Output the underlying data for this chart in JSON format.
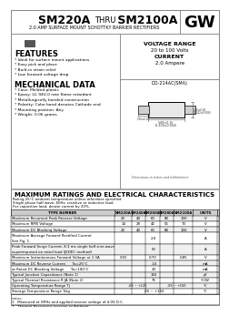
{
  "title_bold1": "SM220A",
  "title_thru": "THRU",
  "title_bold2": "SM2100A",
  "subtitle": "2.0 AMP SURFACE MOUNT SCHOTTKY BARRIER RECTIFIERS",
  "voltage_range_label": "VOLTAGE RANGE",
  "voltage_range_value": "20 to 100 Volts",
  "current_label": "CURRENT",
  "current_value": "2.0 Ampere",
  "features_title": "FEATURES",
  "features": [
    "* Ideal for surface mount applications",
    "* Easy pick and place",
    "* Built-in strain relief",
    "* Low forward voltage drop"
  ],
  "mechanical_title": "MECHANICAL DATA",
  "mechanical": [
    "* Case: Molded plastic",
    "* Epoxy: UL 94V-0 rate flame retardant",
    "* Metallurgically bonded construction",
    "* Polarity: Color band denotes Cathode end",
    "* Mounting position: Any",
    "* Weight: 0.06 grams"
  ],
  "package_label": "DO-214AC(SMA)",
  "table_title": "MAXIMUM RATINGS AND ELECTRICAL CHARACTERISTICS",
  "table_note1": "Rating 25°C ambient temperature unless otherwise specified",
  "table_note2": "Single phase half wave, 60Hz, resistive or inductive load.",
  "table_note3": "For capacitive load, derate current by 20%.",
  "col_headers": [
    "TYPE NUMBER",
    "SM220A",
    "SM240A",
    "SM260A",
    "SM280A",
    "SM2100A",
    "UNITS"
  ],
  "row_data": [
    {
      "label": "Maximum Recurrent Peak Reverse Voltage",
      "v": [
        "20",
        "40",
        "60",
        "80",
        "100"
      ],
      "u": "V",
      "span": false
    },
    {
      "label": "Maximum RMS Voltage",
      "v": [
        "14",
        "28",
        "42",
        "56",
        "70"
      ],
      "u": "V",
      "span": false
    },
    {
      "label": "Maximum DC Blocking Voltage",
      "v": [
        "20",
        "40",
        "60",
        "80",
        "100"
      ],
      "u": "V",
      "span": false
    },
    {
      "label": "Maximum Average Forward Rectified Current",
      "v": [
        "",
        "",
        "2.0",
        "",
        ""
      ],
      "u": "A",
      "span": true,
      "extra": "See Fig. 1"
    },
    {
      "label": "Peak Forward Surge Current, 8.3 ms single half sine-wave",
      "v": [
        "",
        "",
        "50",
        "",
        ""
      ],
      "u": "A",
      "span": true,
      "extra": "superimposed on rated load (JEDEC method)"
    },
    {
      "label": "Maximum Instantaneous Forward Voltage at 2.0A",
      "v": [
        "0.55",
        "",
        "0.70",
        "",
        "0.85"
      ],
      "u": "V",
      "span": false
    },
    {
      "label": "Maximum DC Reverse Current      Ta=25°C",
      "v": [
        "",
        "",
        "1.0",
        "",
        ""
      ],
      "u": "mA",
      "span": true
    },
    {
      "label": "at Rated DC Blocking Voltage      Ta=100°C",
      "v": [
        "",
        "",
        "20",
        "",
        ""
      ],
      "u": "mA",
      "span": true
    },
    {
      "label": "Typical Junction Capacitance (Note 1)",
      "v": [
        "",
        "",
        "150",
        "",
        ""
      ],
      "u": "pF",
      "span": true
    },
    {
      "label": "Typical Thermal Resistance R JA (Note 2)",
      "v": [
        "",
        "",
        "75",
        "",
        ""
      ],
      "u": "°C/W",
      "span": true
    },
    {
      "label": "Operating Temperature Range Tj",
      "v": [
        "-65 ~ +125",
        "",
        "",
        "-65 ~ +150",
        ""
      ],
      "u": "°C",
      "span": false,
      "split": true
    },
    {
      "label": "Storage Temperature Range Tstg",
      "v": [
        "",
        "",
        "-65 ~ +150",
        "",
        ""
      ],
      "u": "°C",
      "span": true
    }
  ],
  "notes": [
    "1.  Measured at 1MHz and applied reverse voltage of 4.0V D.C.",
    "2.  Thermal Resistance Junction to Ambient."
  ],
  "bg_color": "#ffffff",
  "gw_logo": "GW"
}
